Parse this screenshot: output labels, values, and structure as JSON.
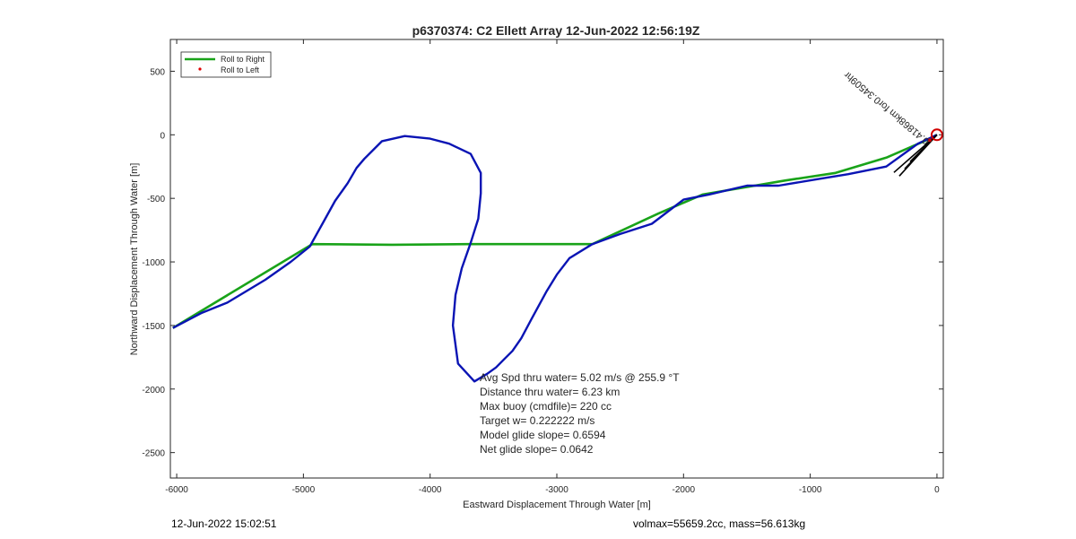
{
  "chart_data": {
    "type": "line",
    "title": "p6370374: C2 Ellett Array 12-Jun-2022 12:56:19Z",
    "xlabel": "Eastward Displacement Through Water [m]",
    "ylabel": "Northward Displacement Through Water [m]",
    "xlim": [
      -6050,
      50
    ],
    "ylim": [
      -2700,
      750
    ],
    "xticks": [
      -6000,
      -5000,
      -4000,
      -3000,
      -2000,
      -1000,
      0
    ],
    "yticks": [
      500,
      0,
      -500,
      -1000,
      -1500,
      -2000,
      -2500
    ],
    "grid": false,
    "legend_position": "top-left",
    "legend": [
      {
        "label": "Roll to Right",
        "color": "#19a319",
        "style": "line"
      },
      {
        "label": "Roll to Left",
        "color": "#e00000",
        "style": "dot"
      }
    ],
    "series": [
      {
        "name": "",
        "color": "#0a14b4",
        "x": [
          0,
          -150,
          -400,
          -700,
          -950,
          -1250,
          -1500,
          -1800,
          -2000,
          -2250,
          -2500,
          -2720,
          -2900,
          -3000,
          -3080,
          -3200,
          -3280,
          -3350,
          -3420,
          -3480,
          -3550,
          -3650,
          -3780,
          -3820,
          -3800,
          -3750,
          -3680,
          -3620,
          -3600,
          -3600,
          -3680,
          -3850,
          -4000,
          -4200,
          -4380,
          -4520,
          -4580,
          -4650,
          -4750,
          -4850,
          -4950,
          -5100,
          -5300,
          -5600,
          -5800,
          -6030
        ],
        "y": [
          0,
          -70,
          -250,
          -310,
          -350,
          -400,
          -400,
          -470,
          -510,
          -700,
          -780,
          -860,
          -970,
          -1100,
          -1230,
          -1450,
          -1600,
          -1700,
          -1770,
          -1830,
          -1880,
          -1940,
          -1800,
          -1500,
          -1260,
          -1050,
          -850,
          -660,
          -460,
          -300,
          -150,
          -70,
          -30,
          -10,
          -50,
          -190,
          -260,
          -380,
          -520,
          -700,
          -880,
          -1000,
          -1140,
          -1320,
          -1400,
          -1520
        ]
      },
      {
        "name": "",
        "color": "#19a319",
        "x": [
          -6030,
          -4930,
          -4300,
          -3700,
          -3200,
          -2720,
          -2200,
          -1850,
          -1200,
          -800,
          -400,
          -100,
          0
        ],
        "y": [
          -1520,
          -860,
          -865,
          -860,
          -860,
          -860,
          -620,
          -470,
          -360,
          -300,
          -180,
          -50,
          0
        ]
      }
    ],
    "markers": [
      {
        "label": "end-circle",
        "x": 0,
        "y": 0,
        "color": "#d00000"
      }
    ],
    "annotations": [
      {
        "text": "0.41868km",
        "x": 0,
        "y": 0,
        "angle": 40
      },
      {
        "text": "for0.34509hr",
        "x": 0,
        "y": 0,
        "angle": 40
      }
    ],
    "stats": [
      "Avg Spd thru water=  5.02 m/s @ 255.9 °T",
      "Distance thru water=  6.23 km",
      "Max buoy (cmdfile)= 220 cc",
      "Target w= 0.222222 m/s",
      "Model glide slope= 0.6594",
      "Net glide slope= 0.0642"
    ]
  },
  "footer": {
    "left": "12-Jun-2022 15:02:51",
    "right": "volmax=55659.2cc, mass=56.613kg"
  }
}
